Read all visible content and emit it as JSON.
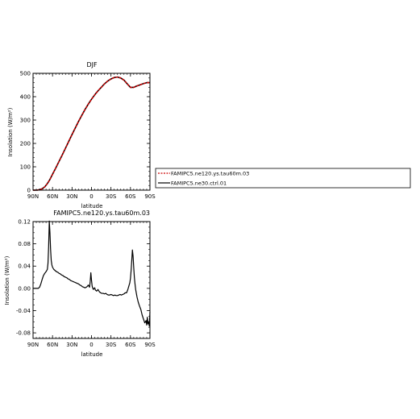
{
  "chart_data": [
    {
      "type": "line",
      "title": "DJF",
      "xlabel": "latitude",
      "ylabel": "Insolation (W/m²)",
      "xlim": [
        -90,
        90
      ],
      "ylim": [
        0,
        500
      ],
      "x_ticks": [
        -90,
        -60,
        -30,
        0,
        30,
        60,
        90
      ],
      "x_tick_labels": [
        "90N",
        "60N",
        "30N",
        "0",
        "30S",
        "60S",
        "90S"
      ],
      "y_ticks": [
        0,
        100,
        200,
        300,
        400,
        500
      ],
      "y_tick_labels": [
        "0",
        "100",
        "200",
        "300",
        "400",
        "500"
      ],
      "legend_position": "right",
      "series": [
        {
          "name": "FAMIPC5.ne120.ys.tau60m.03",
          "color": "#cc0000",
          "style": "dashed",
          "x": [
            -90,
            -84,
            -80,
            -76,
            -72,
            -68,
            -64,
            -60,
            -55,
            -50,
            -45,
            -40,
            -35,
            -30,
            -25,
            -20,
            -15,
            -10,
            -5,
            0,
            5,
            10,
            15,
            20,
            25,
            30,
            35,
            40,
            45,
            50,
            55,
            60,
            65,
            70,
            75,
            80,
            85,
            90
          ],
          "y": [
            0,
            0,
            2,
            6,
            14,
            28,
            46,
            68,
            95,
            123,
            151,
            180,
            209,
            238,
            266,
            294,
            320,
            345,
            368,
            389,
            408,
            425,
            440,
            455,
            467,
            476,
            482,
            484,
            480,
            471,
            455,
            440,
            440,
            446,
            451,
            456,
            460,
            460
          ]
        },
        {
          "name": "FAMIPC5.ne30.ctrl.01",
          "color": "#000000",
          "style": "solid",
          "x": [
            -90,
            -84,
            -80,
            -76,
            -72,
            -68,
            -64,
            -60,
            -55,
            -50,
            -45,
            -40,
            -35,
            -30,
            -25,
            -20,
            -15,
            -10,
            -5,
            0,
            5,
            10,
            15,
            20,
            25,
            30,
            35,
            40,
            45,
            50,
            55,
            60,
            65,
            70,
            75,
            80,
            85,
            90
          ],
          "y": [
            0,
            0,
            2,
            6,
            14,
            28,
            46,
            68,
            95,
            123,
            151,
            180,
            209,
            238,
            266,
            294,
            320,
            345,
            368,
            389,
            408,
            425,
            440,
            455,
            467,
            476,
            482,
            484,
            480,
            471,
            455,
            440,
            440,
            446,
            451,
            456,
            460,
            460
          ]
        }
      ]
    },
    {
      "type": "line",
      "title": "FAMIPC5.ne120.ys.tau60m.03",
      "xlabel": "latitude",
      "ylabel": "Insolation (W/m²)",
      "xlim": [
        -90,
        90
      ],
      "ylim": [
        -0.09,
        0.12
      ],
      "x_ticks": [
        -90,
        -60,
        -30,
        0,
        30,
        60,
        90
      ],
      "x_tick_labels": [
        "90N",
        "60N",
        "30N",
        "0",
        "30S",
        "60S",
        "90S"
      ],
      "y_ticks": [
        -0.08,
        -0.04,
        0.0,
        0.04,
        0.08,
        0.12
      ],
      "y_tick_labels": [
        "-0.08",
        "-0.04",
        "0.00",
        "0.04",
        "0.08",
        "0.12"
      ],
      "series": [
        {
          "name": "",
          "color": "#000000",
          "style": "solid",
          "x": [
            -90,
            -85,
            -82,
            -80,
            -78,
            -76,
            -74,
            -72,
            -70,
            -68,
            -67,
            -66,
            -65,
            -64,
            -63,
            -62,
            -61,
            -60,
            -58,
            -56,
            -54,
            -52,
            -50,
            -48,
            -46,
            -44,
            -42,
            -40,
            -38,
            -36,
            -34,
            -32,
            -30,
            -28,
            -26,
            -24,
            -22,
            -20,
            -18,
            -16,
            -14,
            -12,
            -10,
            -8,
            -6,
            -5,
            -4,
            -3,
            -2,
            -1,
            0,
            1,
            2,
            3,
            4,
            5,
            6,
            8,
            10,
            12,
            14,
            16,
            18,
            20,
            22,
            24,
            26,
            28,
            30,
            32,
            34,
            36,
            38,
            40,
            42,
            44,
            46,
            48,
            50,
            52,
            54,
            55,
            56,
            57,
            58,
            59,
            60,
            61,
            62,
            63,
            64,
            65,
            66,
            67,
            68,
            70,
            72,
            74,
            76,
            78,
            80,
            82,
            84,
            85,
            86,
            87,
            88,
            89,
            90
          ],
          "y": [
            0.0,
            0.0,
            0.0,
            0.002,
            0.008,
            0.016,
            0.023,
            0.027,
            0.03,
            0.034,
            0.045,
            0.075,
            0.121,
            0.1,
            0.07,
            0.05,
            0.042,
            0.038,
            0.034,
            0.032,
            0.03,
            0.029,
            0.027,
            0.026,
            0.024,
            0.023,
            0.021,
            0.02,
            0.019,
            0.017,
            0.016,
            0.014,
            0.013,
            0.012,
            0.011,
            0.01,
            0.009,
            0.008,
            0.006,
            0.005,
            0.003,
            0.002,
            0.001,
            0.002,
            0.004,
            0.006,
            0.004,
            0.002,
            0.012,
            0.028,
            0.015,
            0.004,
            0.0,
            -0.002,
            0.0,
            0.001,
            -0.003,
            -0.005,
            -0.002,
            -0.006,
            -0.008,
            -0.009,
            -0.009,
            -0.01,
            -0.009,
            -0.011,
            -0.012,
            -0.012,
            -0.011,
            -0.012,
            -0.013,
            -0.012,
            -0.013,
            -0.013,
            -0.012,
            -0.011,
            -0.012,
            -0.011,
            -0.01,
            -0.008,
            -0.008,
            -0.005,
            -0.002,
            0.002,
            0.006,
            0.01,
            0.018,
            0.032,
            0.05,
            0.069,
            0.058,
            0.038,
            0.02,
            0.008,
            -0.002,
            -0.015,
            -0.025,
            -0.032,
            -0.038,
            -0.048,
            -0.055,
            -0.062,
            -0.058,
            -0.066,
            -0.052,
            -0.064,
            -0.06,
            -0.068,
            -0.042
          ]
        }
      ]
    }
  ]
}
